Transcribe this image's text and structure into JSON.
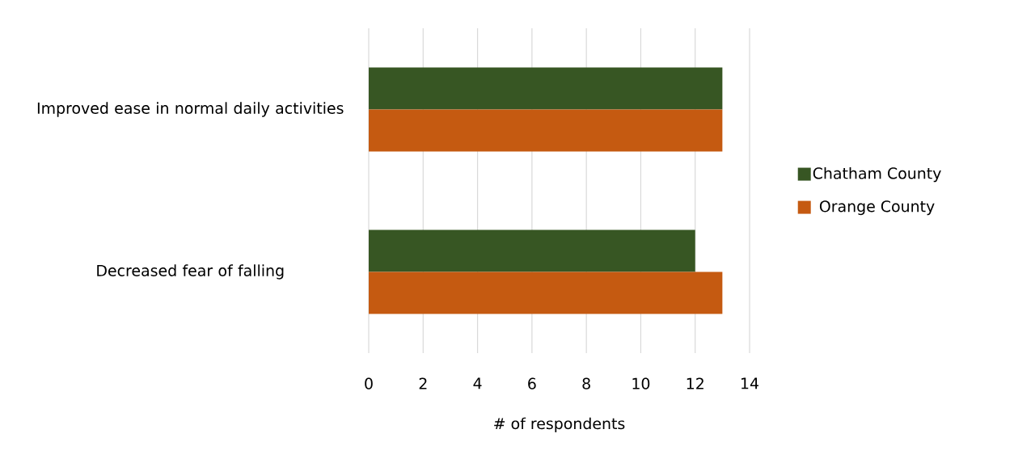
{
  "chart_data": {
    "type": "bar",
    "orientation": "horizontal",
    "xlabel": "# of respondents",
    "categories": [
      "Improved ease in normal daily activities",
      "Decreased fear of falling"
    ],
    "series": [
      {
        "name": "Chatham County",
        "color": "#375623",
        "values": [
          13,
          12
        ]
      },
      {
        "name": "Orange County",
        "color": "#c55a11",
        "values": [
          13,
          13
        ]
      }
    ],
    "xlim": [
      0,
      14
    ],
    "xticks": [
      0,
      2,
      4,
      6,
      8,
      10,
      12,
      14
    ],
    "grid": "x",
    "legend": "right"
  }
}
